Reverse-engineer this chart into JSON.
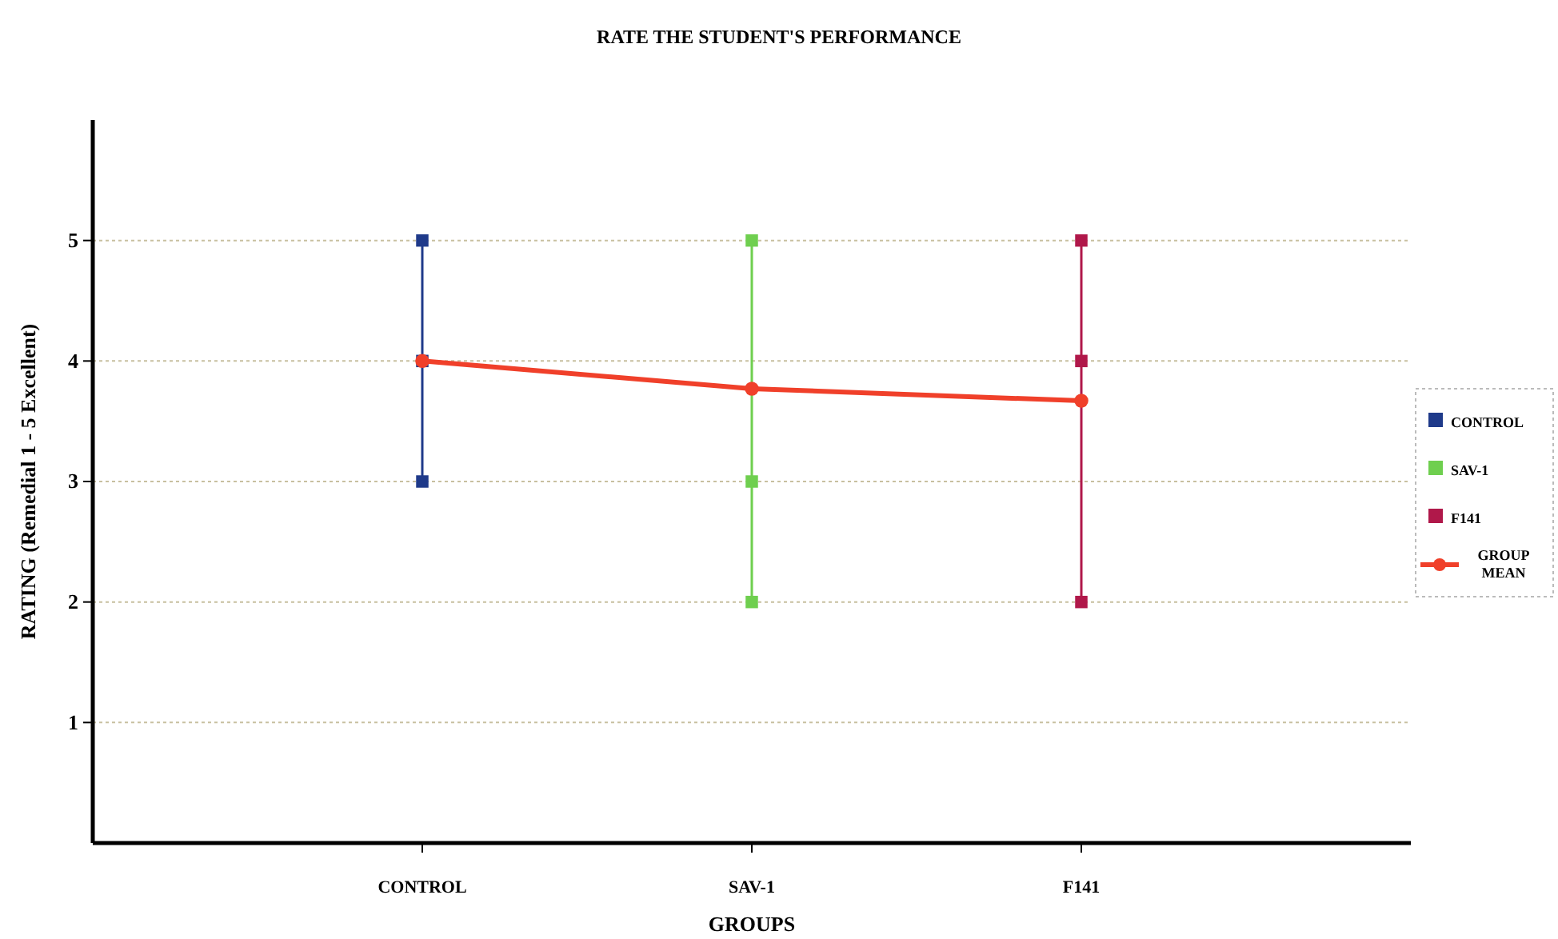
{
  "chart_data": {
    "type": "line",
    "title": "RATE THE STUDENT'S PERFORMANCE",
    "xlabel": "GROUPS",
    "ylabel": "RATING (Remedial 1 - 5 Excellent)",
    "categories": [
      "CONTROL",
      "SAV-1",
      "F141"
    ],
    "ylim": [
      0,
      6
    ],
    "yticks": [
      1,
      2,
      3,
      4,
      5
    ],
    "grid": "y",
    "legend": "right",
    "series": [
      {
        "name": "CONTROL",
        "marker": "square",
        "color": "#1f3a8a",
        "x": [
          "CONTROL",
          "CONTROL",
          "CONTROL"
        ],
        "values": [
          5,
          4,
          3
        ]
      },
      {
        "name": "SAV-1",
        "marker": "square",
        "color": "#6fcf4f",
        "x": [
          "SAV-1",
          "SAV-1",
          "SAV-1"
        ],
        "values": [
          5,
          3,
          2
        ]
      },
      {
        "name": "F141",
        "marker": "square",
        "color": "#b0184a",
        "x": [
          "F141",
          "F141",
          "F141"
        ],
        "values": [
          5,
          4,
          2
        ]
      },
      {
        "name": "GROUP MEAN",
        "marker": "circle",
        "color": "#f0402a",
        "values": [
          4.0,
          3.77,
          3.67
        ]
      }
    ]
  }
}
